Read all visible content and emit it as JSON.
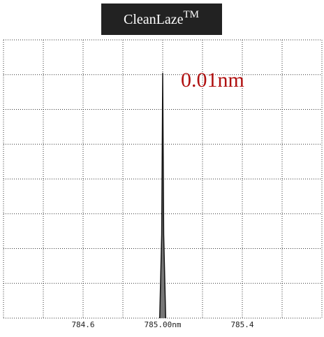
{
  "chart_data": {
    "type": "line",
    "title": "CleanLaze",
    "title_superscript": "TM",
    "annotation": "0.01nm",
    "x": [
      784.985,
      784.995,
      785.0,
      785.005,
      785.015
    ],
    "values": [
      0,
      30,
      88,
      30,
      0
    ],
    "color": "#111111",
    "annotation_color": "#b01010",
    "xlim": [
      784.2,
      785.8
    ],
    "xticks": [
      784.6,
      {
        "value": 785.0,
        "label": "785.00nm"
      },
      785.4
    ],
    "ylim": [
      0,
      100
    ],
    "grid": true
  }
}
